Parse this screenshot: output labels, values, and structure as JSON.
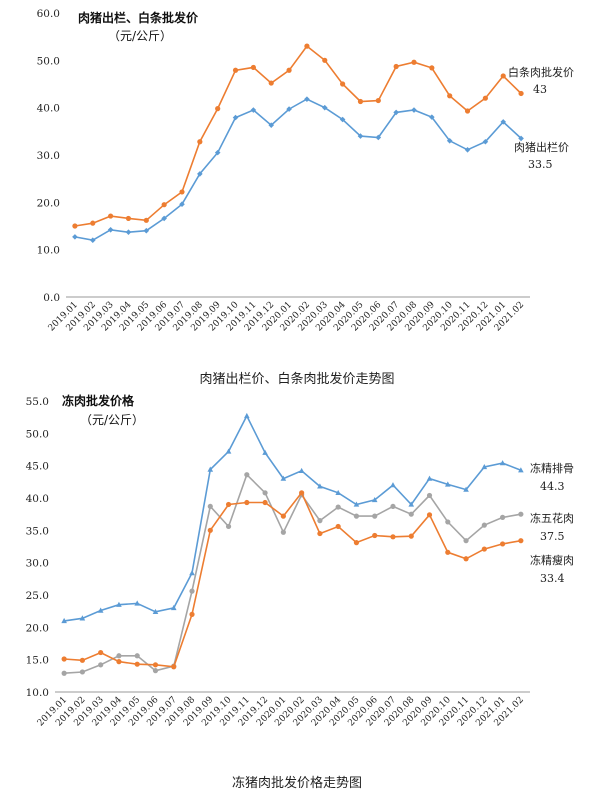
{
  "chart_data": [
    {
      "type": "line",
      "title": "肉猪出栏、白条批发价",
      "unit": "（元/公斤）",
      "caption": "肉猪出栏价、白条肉批发价走势图",
      "ylim": [
        0,
        60
      ],
      "yticks": [
        "0.0",
        "10.0",
        "20.0",
        "30.0",
        "40.0",
        "50.0",
        "60.0"
      ],
      "x": [
        "2019.01",
        "2019.02",
        "2019.03",
        "2019.04",
        "2019.05",
        "2019.06",
        "2019.07",
        "2019.08",
        "2019.09",
        "2019.10",
        "2019.11",
        "2019.12",
        "2020.01",
        "2020.02",
        "2020.03",
        "2020.04",
        "2020.05",
        "2020.06",
        "2020.07",
        "2020.08",
        "2020.09",
        "2020.10",
        "2020.11",
        "2020.12",
        "2021.01",
        "2021.02"
      ],
      "grid": false,
      "series": [
        {
          "name": "白条肉批发价",
          "end_label": "43",
          "color": "#ed7d31",
          "marker": "circle",
          "values": [
            15.0,
            15.6,
            17.1,
            16.6,
            16.2,
            19.5,
            22.2,
            32.8,
            39.8,
            47.9,
            48.5,
            45.2,
            47.9,
            53.0,
            50.0,
            45.0,
            41.3,
            41.5,
            48.7,
            49.6,
            48.4,
            42.5,
            39.3,
            42.0,
            46.7,
            43.0
          ]
        },
        {
          "name": "肉猪出栏价",
          "end_label": "33.5",
          "color": "#5b9bd5",
          "marker": "diamond",
          "values": [
            12.7,
            12.0,
            14.2,
            13.7,
            14.0,
            16.6,
            19.6,
            26.0,
            30.5,
            37.9,
            39.5,
            36.3,
            39.7,
            41.8,
            40.0,
            37.5,
            34.0,
            33.7,
            39.0,
            39.5,
            38.0,
            33.0,
            31.1,
            32.8,
            37.0,
            33.5
          ]
        }
      ]
    },
    {
      "type": "line",
      "title": "冻肉批发价格",
      "unit": "（元/公斤）",
      "caption": "冻猪肉批发价格走势图",
      "ylim": [
        10,
        55
      ],
      "yticks": [
        "10.0",
        "15.0",
        "20.0",
        "25.0",
        "30.0",
        "35.0",
        "40.0",
        "45.0",
        "50.0",
        "55.0"
      ],
      "x": [
        "2019.01",
        "2019.02",
        "2019.03",
        "2019.04",
        "2019.05",
        "2019.06",
        "2019.07",
        "2019.08",
        "2019.09",
        "2019.10",
        "2019.11",
        "2019.12",
        "2020.01",
        "2020.02",
        "2020.03",
        "2020.04",
        "2020.05",
        "2020.06",
        "2020.07",
        "2020.08",
        "2020.09",
        "2020.10",
        "2020.11",
        "2020.12",
        "2021.01",
        "2021.02"
      ],
      "grid": false,
      "series": [
        {
          "name": "冻精排骨",
          "end_label": "44.3",
          "color": "#5b9bd5",
          "marker": "triangle",
          "values": [
            21.0,
            21.4,
            22.6,
            23.5,
            23.7,
            22.4,
            23.0,
            28.4,
            44.4,
            47.2,
            52.7,
            47.0,
            43.0,
            44.2,
            41.8,
            40.8,
            39.0,
            39.7,
            42.0,
            39.0,
            43.0,
            42.1,
            41.3,
            44.8,
            45.4,
            44.3
          ]
        },
        {
          "name": "冻五花肉",
          "end_label": "37.5",
          "color": "#a5a5a5",
          "marker": "circle",
          "values": [
            12.9,
            13.1,
            14.2,
            15.6,
            15.6,
            13.3,
            14.0,
            25.6,
            38.7,
            35.6,
            43.6,
            40.8,
            34.7,
            40.5,
            36.5,
            38.6,
            37.2,
            37.2,
            38.7,
            37.5,
            40.4,
            36.3,
            33.4,
            35.8,
            37.0,
            37.5
          ]
        },
        {
          "name": "冻精瘦肉",
          "end_label": "33.4",
          "color": "#ed7d31",
          "marker": "circle",
          "values": [
            15.1,
            14.9,
            16.1,
            14.7,
            14.3,
            14.2,
            13.9,
            22.0,
            35.0,
            39.0,
            39.3,
            39.3,
            37.2,
            40.8,
            34.5,
            35.6,
            33.1,
            34.2,
            34.0,
            34.1,
            37.4,
            31.6,
            30.6,
            32.1,
            32.9,
            33.4
          ]
        }
      ]
    }
  ]
}
